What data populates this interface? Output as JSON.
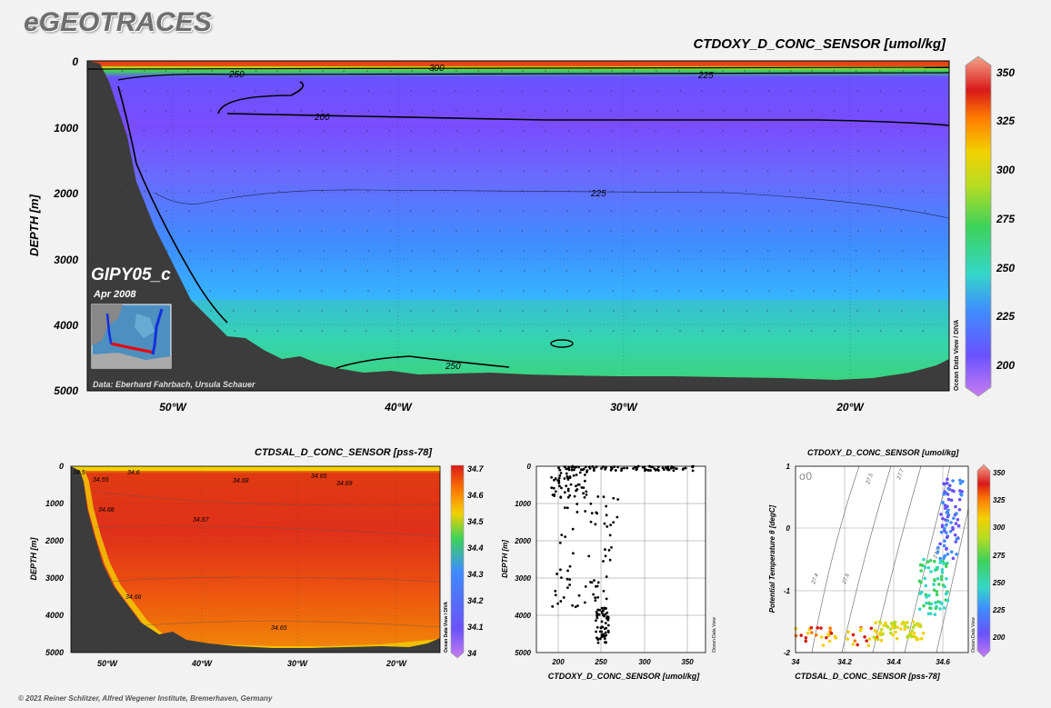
{
  "header": {
    "brand": "eGEOTRACES"
  },
  "footer": {
    "copyright": "© 2021 Reiner Schlitzer, Alfred Wegener Institute, Bremerhaven, Germany"
  },
  "colors": {
    "colormap": [
      "#c77cf0",
      "#6a52ff",
      "#3fa6ff",
      "#34d6c8",
      "#3dd25a",
      "#f2d100",
      "#ff7a00",
      "#d91a1a",
      "#f5a48c"
    ],
    "seafloor": "#3c3c3c",
    "background": "#f2f2f2"
  },
  "chart_data": [
    {
      "type": "heatmap",
      "variant": "section",
      "title": "CTDOXY_D_CONC_SENSOR [umol/kg]",
      "ylabel": "DEPTH [m]",
      "cruise": "GIPY05_c",
      "date": "Apr 2008",
      "credit": "Data: Eberhard Fahrbach, Ursula Schauer",
      "watermark": "Ocean Data View / DIVA",
      "xlim": [
        -54,
        -15
      ],
      "ylim": [
        5000,
        0
      ],
      "x_ticks": [
        -50,
        -40,
        -30,
        -20
      ],
      "x_tick_labels": [
        "50°W",
        "40°W",
        "30°W",
        "20°W"
      ],
      "y_ticks": [
        0,
        1000,
        2000,
        3000,
        4000,
        5000
      ],
      "y_tick_labels": [
        "0",
        "1000",
        "2000",
        "3000",
        "4000",
        "5000"
      ],
      "colorbar": {
        "min": 185,
        "max": 355,
        "ticks": [
          200,
          225,
          250,
          275,
          300,
          325,
          350
        ]
      },
      "contour_labels": [
        "250",
        "300",
        "225",
        "200",
        "225",
        "250"
      ],
      "grid": true
    },
    {
      "type": "heatmap",
      "variant": "section",
      "title": "CTDSAL_D_CONC_SENSOR [pss-78]",
      "ylabel": "DEPTH [m]",
      "watermark": "Ocean Data View / DIVA",
      "xlim": [
        -54,
        -15
      ],
      "ylim": [
        5000,
        0
      ],
      "x_tick_labels": [
        "50°W",
        "40°W",
        "30°W",
        "20°W"
      ],
      "y_tick_labels": [
        "0",
        "1000",
        "2000",
        "3000",
        "4000",
        "5000"
      ],
      "colorbar": {
        "min": 34,
        "max": 34.7,
        "ticks": [
          "34",
          "34.1",
          "34.2",
          "34.3",
          "34.4",
          "34.5",
          "34.6",
          "34.7"
        ]
      },
      "contour_labels": [
        "34.5",
        "34.55",
        "34.6",
        "34.68",
        "34.65",
        "34.69",
        "34.68",
        "34.67",
        "34.66",
        "34.65"
      ],
      "grid": true
    },
    {
      "type": "scatter",
      "title": "",
      "xlabel": "CTDOXY_D_CONC_SENSOR [umol/kg]",
      "ylabel": "DEPTH [m]",
      "watermark": "Ocean Data View",
      "xlim": [
        180,
        360
      ],
      "ylim": [
        5000,
        0
      ],
      "x_tick_labels": [
        "200",
        "250",
        "300",
        "350"
      ],
      "y_tick_labels": [
        "0",
        "1000",
        "2000",
        "3000",
        "4000",
        "5000"
      ],
      "grid": true
    },
    {
      "type": "scatter",
      "title": "CTDOXY_D_CONC_SENSOR [umol/kg]",
      "xlabel": "CTDSAL_D_CONC_SENSOR [pss-78]",
      "ylabel": "Potential Temperature θ [degC]",
      "watermark": "Ocean Data View",
      "xlim": [
        34,
        34.7
      ],
      "ylim": [
        -2,
        1
      ],
      "x_tick_labels": [
        "34",
        "34.2",
        "34.4",
        "34.6"
      ],
      "y_tick_labels": [
        "1",
        "0",
        "-1",
        "-2"
      ],
      "isopycnal_symbol": "σ0",
      "isopycnal_labels": [
        "27.4",
        "27.5",
        "27.6",
        "27.7",
        "27.8"
      ],
      "colorbar": {
        "min": 185,
        "max": 355,
        "ticks": [
          200,
          225,
          250,
          275,
          300,
          325,
          350
        ]
      },
      "grid": true
    }
  ]
}
